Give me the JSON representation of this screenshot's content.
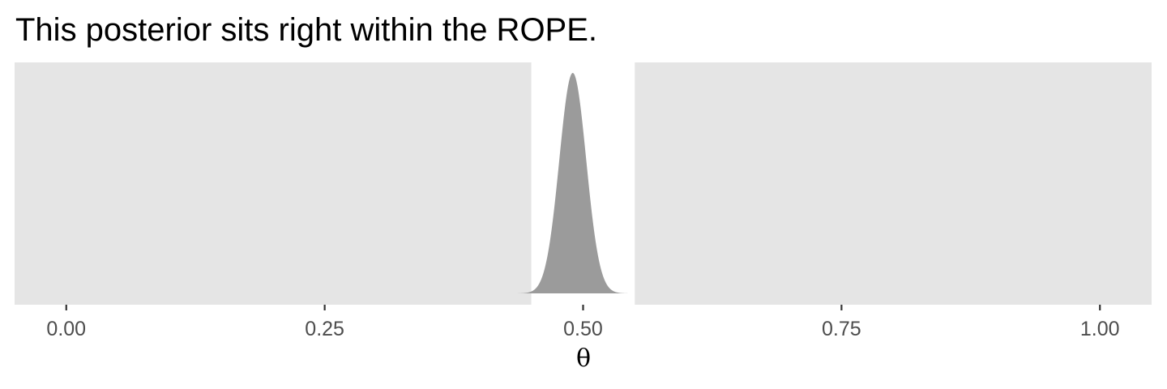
{
  "chart_data": {
    "type": "area",
    "title": "This posterior sits right within the ROPE.",
    "xlabel": "θ",
    "ylabel": "",
    "xlim": [
      -0.05,
      1.05
    ],
    "x_ticks": [
      0.0,
      0.25,
      0.5,
      0.75,
      1.0
    ],
    "x_tick_labels": [
      "0.00",
      "0.25",
      "0.50",
      "0.75",
      "1.00"
    ],
    "y_axis_shown": false,
    "grid": false,
    "legend": "none",
    "rope": {
      "low": 0.45,
      "high": 0.55
    },
    "posterior": {
      "distribution": "normal",
      "mean": 0.49,
      "sd": 0.013,
      "x_min": 0.42,
      "x_max": 0.55,
      "fill_color": "#9b9b9b"
    },
    "panel_background_color": "#e5e5e5",
    "rope_background_color": "#ffffff"
  }
}
